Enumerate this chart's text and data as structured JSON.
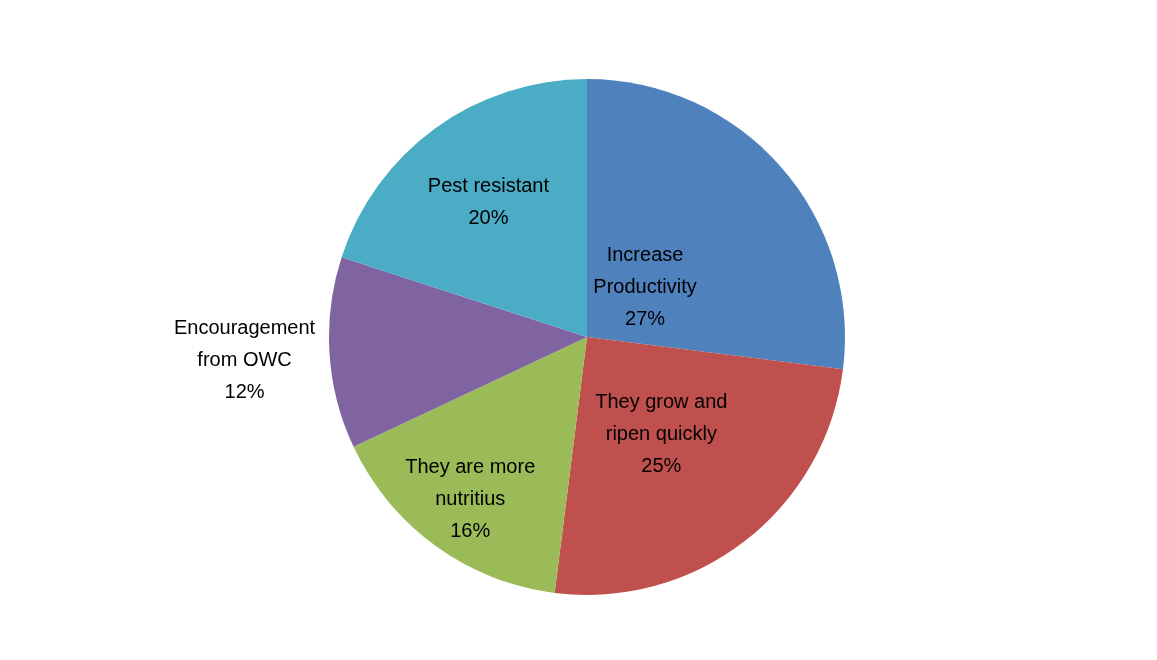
{
  "chart_data": {
    "type": "pie",
    "categories": [
      "Increase Productivity",
      "They grow and ripen quickly",
      "They are more nutritius",
      "Encouragement from OWC",
      "Pest resistant"
    ],
    "values": [
      27,
      25,
      16,
      12,
      20
    ],
    "colors": [
      "#4f81bd",
      "#c0504d",
      "#9bbb59",
      "#8064a2",
      "#4bacc6"
    ],
    "value_labels": [
      "27%",
      "25%",
      "16%",
      "12%",
      "20%"
    ]
  }
}
